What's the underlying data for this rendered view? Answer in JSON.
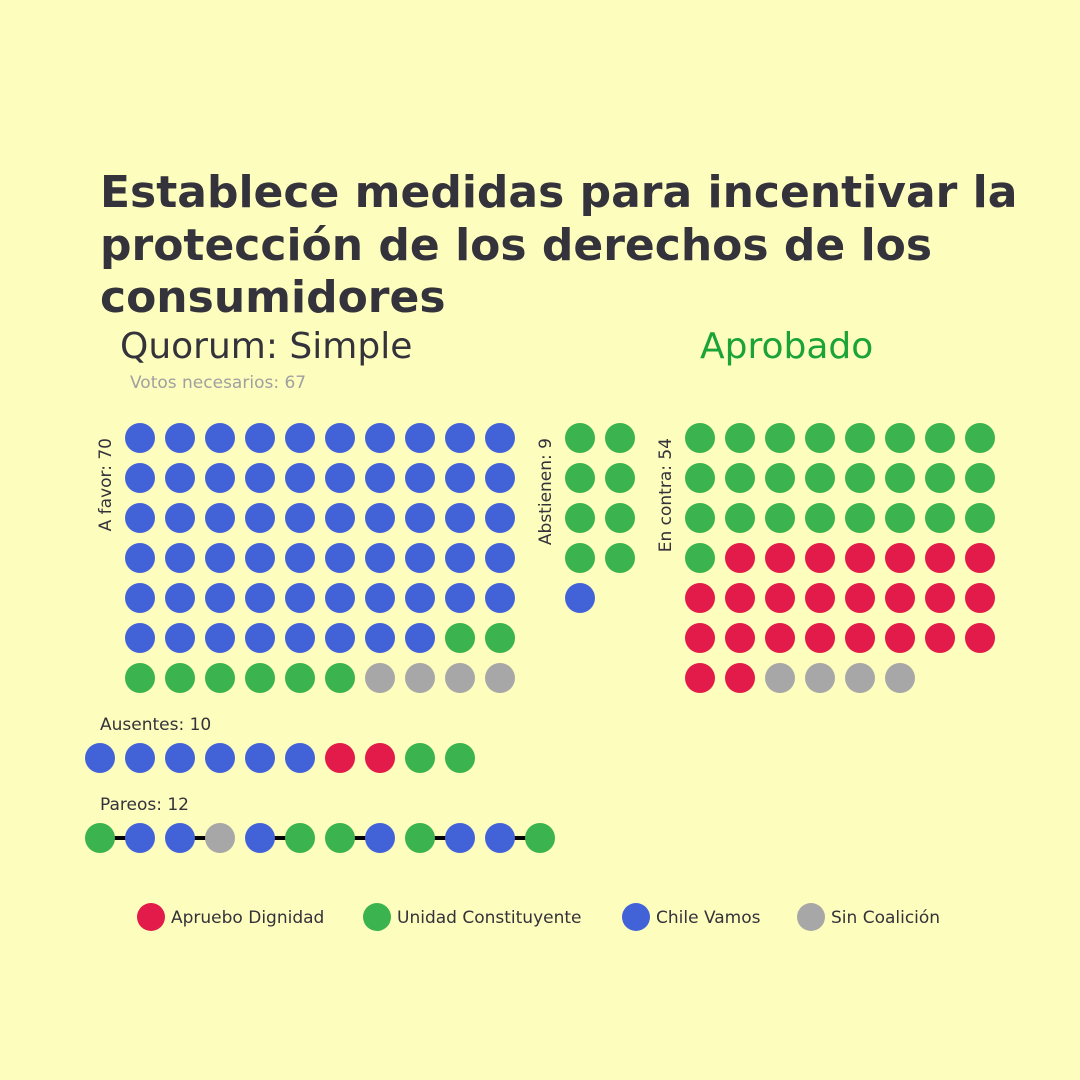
{
  "chart_data": {
    "type": "waffle",
    "title": [
      "Establece medidas para incentivar la",
      "protección de los derechos de los",
      "consumidores"
    ],
    "subtitle": "Quorum: Simple",
    "result": "Aprobado",
    "note": "Votos necesarios: 67",
    "groups": [
      {
        "label": "A favor: 70",
        "segments": [
          {
            "color": "#4263d8",
            "value": 58
          },
          {
            "color": "#3bb34f",
            "value": 8
          },
          {
            "color": "#a8a7a8",
            "value": 4
          }
        ]
      },
      {
        "label": "Abstienen: 9",
        "segments": [
          {
            "color": "#3bb34f",
            "value": 8
          },
          {
            "color": "#4263d8",
            "value": 1
          }
        ]
      },
      {
        "label": "En contra: 54",
        "segments": [
          {
            "color": "#3bb34f",
            "value": 25
          },
          {
            "color": "#e21b4a",
            "value": 25
          },
          {
            "color": "#a8a7a8",
            "value": 4
          }
        ]
      },
      {
        "label": "Ausentes: 10",
        "segments": [
          {
            "color": "#4263d8",
            "value": 6
          },
          {
            "color": "#e21b4a",
            "value": 2
          },
          {
            "color": "#3bb34f",
            "value": 2
          }
        ]
      }
    ],
    "pairs_label": "Pareos: 12",
    "pairs": [
      [
        "#3bb34f",
        "#4263d8"
      ],
      [
        "#4263d8",
        "#a8a7a8"
      ],
      [
        "#4263d8",
        "#3bb34f"
      ],
      [
        "#3bb34f",
        "#4263d8"
      ],
      [
        "#3bb34f",
        "#4263d8"
      ],
      [
        "#4263d8",
        "#3bb34f"
      ]
    ],
    "legend": [
      {
        "name": "Apruebo Dignidad",
        "color": "#e21b4a"
      },
      {
        "name": "Unidad Constituyente",
        "color": "#3bb34f"
      },
      {
        "name": "Chile Vamos",
        "color": "#4263d8"
      },
      {
        "name": "Sin Coalición",
        "color": "#a8a7a8"
      }
    ]
  }
}
